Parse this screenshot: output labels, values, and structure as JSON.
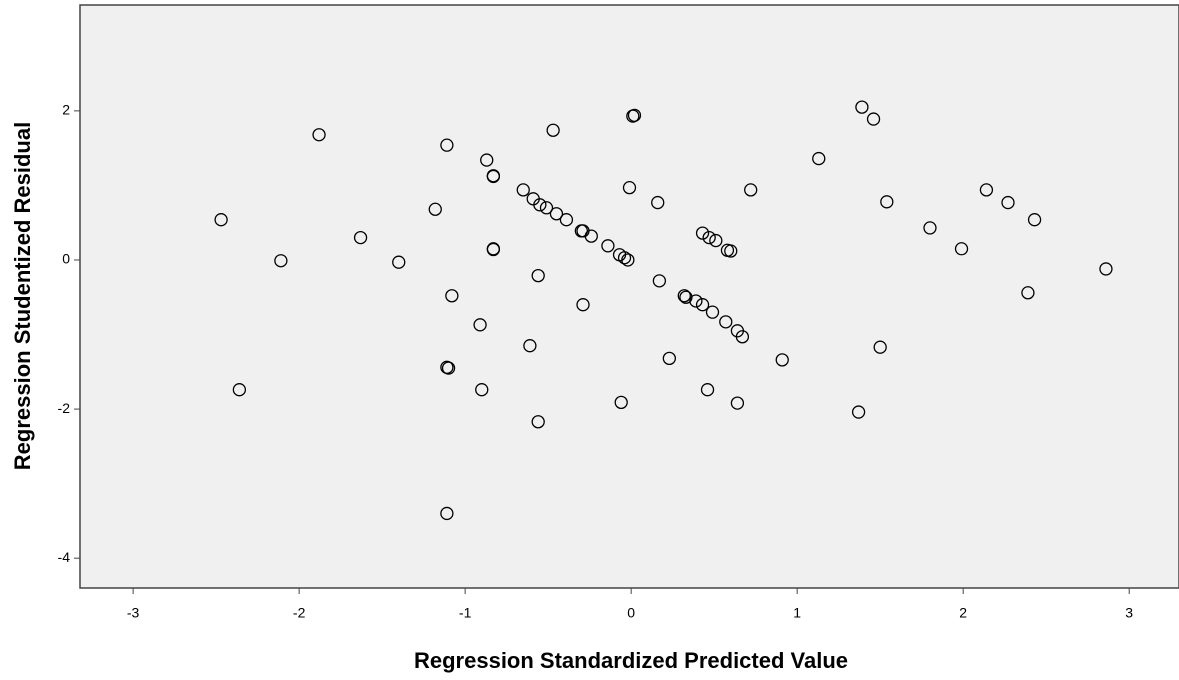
{
  "chart_data": {
    "type": "scatter",
    "x_label": "Regression Standardized Predicted Value",
    "y_label": "Regression Studentized Residual",
    "xlim": [
      -3.32,
      3.3
    ],
    "ylim": [
      -4.4,
      3.42
    ],
    "xticks": [
      -3,
      -2,
      -1,
      0,
      1,
      2,
      3
    ],
    "yticks": [
      -4,
      -2,
      0,
      2
    ],
    "color": "#000000",
    "x": [
      -2.47,
      -2.36,
      -2.11,
      -1.88,
      -1.63,
      -1.4,
      -1.18,
      -1.11,
      -1.08,
      -1.11,
      -1.1,
      -1.11,
      -0.91,
      -0.9,
      -0.87,
      -0.83,
      -0.83,
      -0.83,
      -0.83,
      -0.65,
      -0.61,
      -0.59,
      -0.55,
      -0.51,
      -0.56,
      -0.56,
      -0.47,
      -0.45,
      -0.39,
      -0.3,
      -0.29,
      -0.24,
      -0.29,
      -0.14,
      -0.07,
      -0.04,
      -0.02,
      -0.01,
      0.01,
      0.02,
      -0.06,
      0.16,
      0.17,
      0.23,
      0.32,
      0.33,
      0.39,
      0.43,
      0.43,
      0.47,
      0.49,
      0.51,
      0.46,
      0.57,
      0.58,
      0.6,
      0.64,
      0.67,
      0.64,
      0.72,
      0.91,
      1.13,
      1.37,
      1.39,
      1.46,
      1.5,
      1.54,
      1.8,
      1.99,
      2.14,
      2.27,
      2.39,
      2.43,
      2.86
    ],
    "values": [
      0.54,
      -1.74,
      -0.01,
      1.68,
      0.3,
      -0.03,
      0.68,
      1.54,
      -0.48,
      -1.44,
      -1.45,
      -3.4,
      -0.87,
      -1.74,
      1.34,
      1.13,
      1.12,
      0.15,
      0.14,
      0.94,
      -1.15,
      0.82,
      0.74,
      0.7,
      -0.21,
      -2.17,
      1.74,
      0.62,
      0.54,
      0.39,
      0.39,
      0.32,
      -0.6,
      0.19,
      0.07,
      0.03,
      0.0,
      0.97,
      1.93,
      1.94,
      -1.91,
      0.77,
      -0.28,
      -1.32,
      -0.48,
      -0.5,
      -0.55,
      0.36,
      -0.6,
      0.3,
      -0.7,
      0.26,
      -1.74,
      -0.83,
      0.13,
      0.12,
      -0.95,
      -1.03,
      -1.92,
      0.94,
      -1.34,
      1.36,
      -2.04,
      2.05,
      1.89,
      -1.17,
      0.78,
      0.43,
      0.15,
      0.94,
      0.77,
      -0.44,
      0.54,
      -0.12
    ]
  }
}
